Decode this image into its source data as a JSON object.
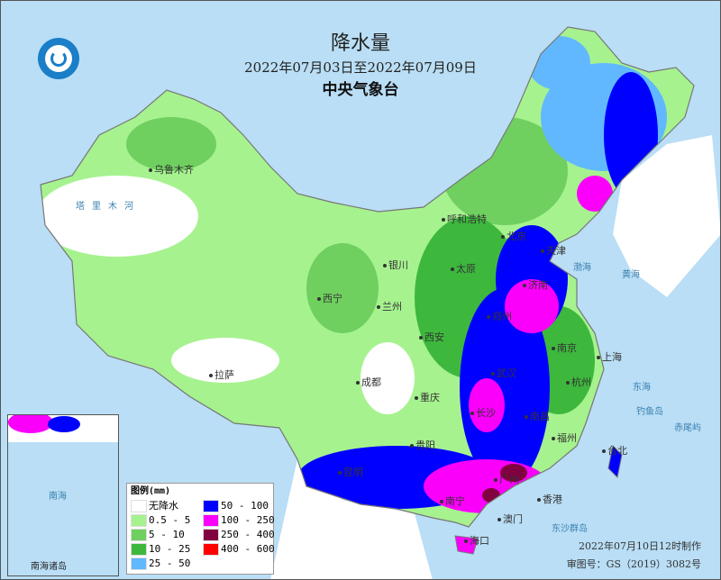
{
  "header": {
    "title": "降水量",
    "subtitle": "2022年07月03日至2022年07月09日",
    "organization": "中央气象台",
    "logo": "cma-logo-icon"
  },
  "cities": [
    "乌鲁木齐",
    "呼和浩特",
    "银川",
    "西宁",
    "兰州",
    "西安",
    "拉萨",
    "成都",
    "重庆",
    "贵阳",
    "昆明",
    "南宁",
    "海口",
    "澳门",
    "香港",
    "广州",
    "福州",
    "台北",
    "杭州",
    "上海",
    "南京",
    "武汉",
    "长沙",
    "南昌",
    "郑州",
    "济南",
    "太原",
    "北京",
    "天津"
  ],
  "seas": [
    "东海",
    "黄海",
    "渤海",
    "东沙群岛",
    "钓鱼岛",
    "赤尾屿",
    "塔里木河"
  ],
  "inset": {
    "title": "南海诸岛",
    "sea": "南海"
  },
  "legend": {
    "title": "图例(mm)",
    "items": [
      {
        "label": "无降水",
        "color": "#ffffff"
      },
      {
        "label": "0.5 - 5",
        "color": "#a6f28f"
      },
      {
        "label": "5 - 10",
        "color": "#6fd05f"
      },
      {
        "label": "10 - 25",
        "color": "#3db83d"
      },
      {
        "label": "25 - 50",
        "color": "#61b8ff"
      },
      {
        "label": "50 - 100",
        "color": "#0000ff"
      },
      {
        "label": "100 - 250",
        "color": "#fa00fa"
      },
      {
        "label": "250 - 400",
        "color": "#800040"
      },
      {
        "label": "400 - 600",
        "color": "#ff0000"
      }
    ]
  },
  "footer": {
    "made": "2022年07月10日12时制作",
    "review": "审图号：GS（2019）3082号"
  }
}
